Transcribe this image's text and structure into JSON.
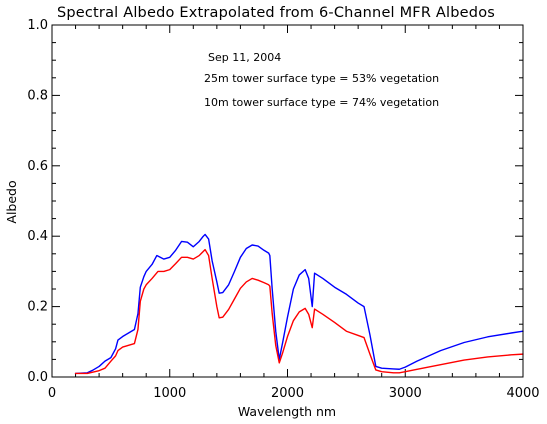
{
  "colors": {
    "background": "#ffffff",
    "axis": "#000000",
    "text": "#000000",
    "series_25m": "#0000ff",
    "series_10m": "#ff0000"
  },
  "chart_data": {
    "type": "line",
    "title": "Spectral Albedo Extrapolated from 6-Channel MFR Albedos",
    "xlabel": "Wavelength nm",
    "ylabel": "Albedo",
    "xlim": [
      0,
      4000
    ],
    "ylim": [
      0.0,
      1.0
    ],
    "x_ticks": [
      0,
      1000,
      2000,
      3000,
      4000
    ],
    "y_ticks": [
      0.0,
      0.2,
      0.4,
      0.6,
      0.8,
      1.0
    ],
    "x_tick_labels": [
      "0",
      "1000",
      "2000",
      "3000",
      "4000"
    ],
    "y_tick_labels": [
      "0.0",
      "0.2",
      "0.4",
      "0.6",
      "0.8",
      "1.0"
    ],
    "grid": false,
    "legend": "none",
    "annotations": [
      {
        "text": "Sep 11, 2004",
        "color": "#000000"
      },
      {
        "text": "25m tower surface type =  53% vegetation",
        "color": "#0000ff"
      },
      {
        "text": "10m tower surface type =  74% vegetation",
        "color": "#ff0000"
      }
    ],
    "series": [
      {
        "color": "#0000ff",
        "points": [
          [
            200,
            0.01
          ],
          [
            300,
            0.012
          ],
          [
            350,
            0.02
          ],
          [
            400,
            0.03
          ],
          [
            450,
            0.045
          ],
          [
            500,
            0.055
          ],
          [
            540,
            0.08
          ],
          [
            560,
            0.105
          ],
          [
            600,
            0.115
          ],
          [
            650,
            0.125
          ],
          [
            700,
            0.135
          ],
          [
            730,
            0.18
          ],
          [
            750,
            0.255
          ],
          [
            780,
            0.285
          ],
          [
            800,
            0.3
          ],
          [
            850,
            0.32
          ],
          [
            890,
            0.345
          ],
          [
            950,
            0.335
          ],
          [
            1000,
            0.34
          ],
          [
            1050,
            0.36
          ],
          [
            1100,
            0.385
          ],
          [
            1150,
            0.383
          ],
          [
            1200,
            0.37
          ],
          [
            1250,
            0.385
          ],
          [
            1280,
            0.398
          ],
          [
            1300,
            0.405
          ],
          [
            1330,
            0.392
          ],
          [
            1360,
            0.33
          ],
          [
            1400,
            0.27
          ],
          [
            1420,
            0.238
          ],
          [
            1450,
            0.24
          ],
          [
            1500,
            0.262
          ],
          [
            1550,
            0.3
          ],
          [
            1600,
            0.34
          ],
          [
            1650,
            0.365
          ],
          [
            1700,
            0.375
          ],
          [
            1750,
            0.372
          ],
          [
            1800,
            0.36
          ],
          [
            1840,
            0.352
          ],
          [
            1850,
            0.345
          ],
          [
            1870,
            0.25
          ],
          [
            1900,
            0.13
          ],
          [
            1930,
            0.05
          ],
          [
            1960,
            0.1
          ],
          [
            2000,
            0.17
          ],
          [
            2050,
            0.25
          ],
          [
            2100,
            0.29
          ],
          [
            2150,
            0.305
          ],
          [
            2180,
            0.28
          ],
          [
            2210,
            0.2
          ],
          [
            2230,
            0.295
          ],
          [
            2300,
            0.28
          ],
          [
            2400,
            0.255
          ],
          [
            2500,
            0.235
          ],
          [
            2600,
            0.21
          ],
          [
            2650,
            0.2
          ],
          [
            2700,
            0.12
          ],
          [
            2750,
            0.03
          ],
          [
            2800,
            0.025
          ],
          [
            2900,
            0.023
          ],
          [
            2950,
            0.022
          ],
          [
            3000,
            0.028
          ],
          [
            3100,
            0.045
          ],
          [
            3300,
            0.075
          ],
          [
            3500,
            0.098
          ],
          [
            3700,
            0.114
          ],
          [
            3900,
            0.125
          ],
          [
            4000,
            0.13
          ]
        ]
      },
      {
        "color": "#ff0000",
        "points": [
          [
            200,
            0.01
          ],
          [
            300,
            0.01
          ],
          [
            400,
            0.018
          ],
          [
            450,
            0.025
          ],
          [
            500,
            0.045
          ],
          [
            540,
            0.06
          ],
          [
            560,
            0.075
          ],
          [
            600,
            0.085
          ],
          [
            650,
            0.09
          ],
          [
            700,
            0.095
          ],
          [
            730,
            0.135
          ],
          [
            750,
            0.215
          ],
          [
            780,
            0.25
          ],
          [
            800,
            0.262
          ],
          [
            850,
            0.28
          ],
          [
            900,
            0.3
          ],
          [
            950,
            0.3
          ],
          [
            1000,
            0.305
          ],
          [
            1050,
            0.322
          ],
          [
            1100,
            0.34
          ],
          [
            1150,
            0.34
          ],
          [
            1200,
            0.335
          ],
          [
            1250,
            0.345
          ],
          [
            1280,
            0.355
          ],
          [
            1300,
            0.362
          ],
          [
            1330,
            0.345
          ],
          [
            1360,
            0.28
          ],
          [
            1400,
            0.2
          ],
          [
            1420,
            0.168
          ],
          [
            1450,
            0.17
          ],
          [
            1500,
            0.192
          ],
          [
            1550,
            0.222
          ],
          [
            1600,
            0.252
          ],
          [
            1650,
            0.27
          ],
          [
            1700,
            0.28
          ],
          [
            1750,
            0.275
          ],
          [
            1800,
            0.268
          ],
          [
            1840,
            0.262
          ],
          [
            1850,
            0.258
          ],
          [
            1870,
            0.18
          ],
          [
            1900,
            0.09
          ],
          [
            1930,
            0.04
          ],
          [
            1960,
            0.07
          ],
          [
            2000,
            0.115
          ],
          [
            2050,
            0.16
          ],
          [
            2100,
            0.185
          ],
          [
            2150,
            0.195
          ],
          [
            2180,
            0.178
          ],
          [
            2210,
            0.14
          ],
          [
            2230,
            0.193
          ],
          [
            2300,
            0.178
          ],
          [
            2400,
            0.155
          ],
          [
            2500,
            0.13
          ],
          [
            2600,
            0.118
          ],
          [
            2650,
            0.112
          ],
          [
            2700,
            0.065
          ],
          [
            2750,
            0.02
          ],
          [
            2800,
            0.015
          ],
          [
            2900,
            0.012
          ],
          [
            2950,
            0.012
          ],
          [
            3000,
            0.015
          ],
          [
            3100,
            0.022
          ],
          [
            3300,
            0.035
          ],
          [
            3500,
            0.048
          ],
          [
            3700,
            0.057
          ],
          [
            3900,
            0.063
          ],
          [
            4000,
            0.065
          ]
        ]
      }
    ]
  }
}
